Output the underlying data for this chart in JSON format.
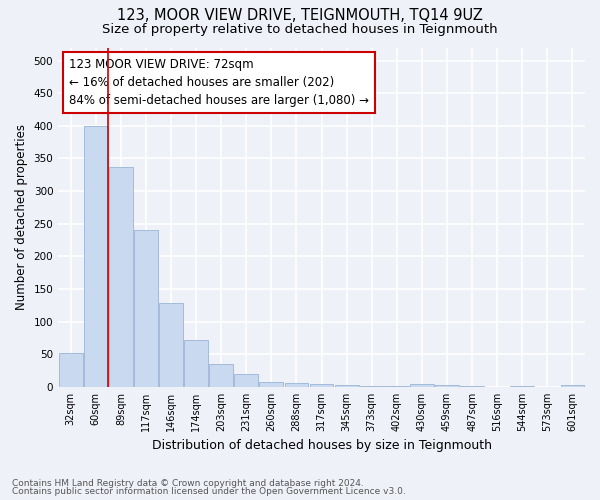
{
  "title": "123, MOOR VIEW DRIVE, TEIGNMOUTH, TQ14 9UZ",
  "subtitle": "Size of property relative to detached houses in Teignmouth",
  "xlabel": "Distribution of detached houses by size in Teignmouth",
  "ylabel": "Number of detached properties",
  "categories": [
    "32sqm",
    "60sqm",
    "89sqm",
    "117sqm",
    "146sqm",
    "174sqm",
    "203sqm",
    "231sqm",
    "260sqm",
    "288sqm",
    "317sqm",
    "345sqm",
    "373sqm",
    "402sqm",
    "430sqm",
    "459sqm",
    "487sqm",
    "516sqm",
    "544sqm",
    "573sqm",
    "601sqm"
  ],
  "values": [
    52,
    400,
    337,
    240,
    128,
    72,
    35,
    20,
    7,
    6,
    4,
    3,
    2,
    1,
    5,
    3,
    1,
    0,
    1,
    0,
    3
  ],
  "bar_color": "#c9d9ef",
  "bar_edge_color": "#9ab4d4",
  "vline_x_bar_index": 1.5,
  "vline_color": "#cc0000",
  "annotation_text": "123 MOOR VIEW DRIVE: 72sqm\n← 16% of detached houses are smaller (202)\n84% of semi-detached houses are larger (1,080) →",
  "annotation_box_facecolor": "#ffffff",
  "annotation_box_edgecolor": "#cc0000",
  "ylim": [
    0,
    520
  ],
  "yticks": [
    0,
    50,
    100,
    150,
    200,
    250,
    300,
    350,
    400,
    450,
    500
  ],
  "footer1": "Contains HM Land Registry data © Crown copyright and database right 2024.",
  "footer2": "Contains public sector information licensed under the Open Government Licence v3.0.",
  "bg_color": "#eef2f8",
  "grid_color": "#ffffff",
  "title_fontsize": 10.5,
  "subtitle_fontsize": 9.5,
  "tick_fontsize": 7,
  "ylabel_fontsize": 8.5,
  "xlabel_fontsize": 9,
  "footer_fontsize": 6.5,
  "annotation_fontsize": 8.5
}
